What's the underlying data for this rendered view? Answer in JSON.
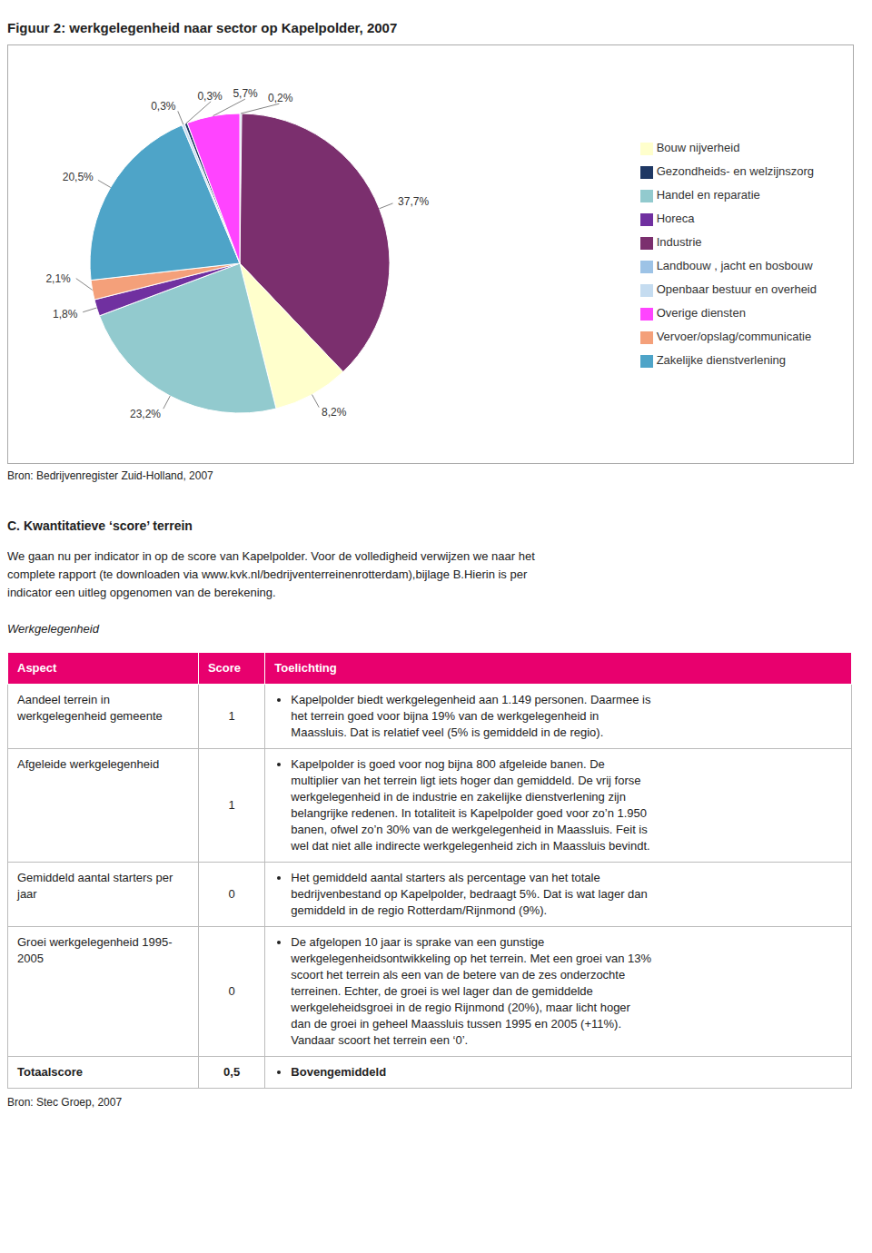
{
  "chart_data": {
    "type": "pie",
    "title": "Figuur 2: werkgelegenheid naar sector op Kapelpolder, 2007",
    "categories": [
      "Landbouw , jacht en bosbouw",
      "Industrie",
      "Bouw nijverheid",
      "Handel en reparatie",
      "Horeca",
      "Vervoer/opslag/communicatie",
      "Zakelijke dienstverlening",
      "Openbaar bestuur en overheid",
      "Gezondheids- en welzijnszorg",
      "Overige diensten"
    ],
    "values": [
      0.2,
      37.7,
      8.2,
      23.2,
      1.8,
      2.1,
      20.5,
      0.3,
      0.3,
      5.7
    ],
    "value_labels": [
      "0,2%",
      "37,7%",
      "8,2%",
      "23,2%",
      "1,8%",
      "2,1%",
      "20,5%",
      "0,3%",
      "0,3%",
      "5,7%"
    ],
    "colors": [
      "#9DC3E6",
      "#7B2F6E",
      "#FFFFCC",
      "#92CACE",
      "#7030A0",
      "#F4A07A",
      "#4EA4C8",
      "#C5DCF0",
      "#1F3864",
      "#FF44FF"
    ],
    "data_labels": true,
    "legend": "right",
    "annotations": [
      "Bron: Bedrijvenregister Zuid-Holland, 2007",
      "C. Kwantitatieve ‘score’ terrein",
      "We gaan nu per indicator in op de score van Kapelpolder. Voor de volledigheid verwijzen we naar het",
      "complete rapport (te downloaden via www.kvk.nl/bedrijventerreinenrotterdam),bijlage B.Hierin is per",
      "indicator een uitleg opgenomen van de berekening.",
      "Werkgelegenheid",
      "Bron: Stec Groep, 2007"
    ],
    "table": {
      "header_color": "#E8006E",
      "columns": [
        "Aspect",
        "Score",
        "Toelichting"
      ],
      "rows": [
        {
          "aspect": [
            "Aandeel terrein in",
            "werkgelegenheid gemeente"
          ],
          "score": "1",
          "notes": [
            "Kapelpolder biedt werkgelegenheid aan 1.149 personen. Daarmee is",
            "het terrein goed voor bijna 19% van de werkgelegenheid in",
            "Maassluis. Dat is relatief veel (5% is gemiddeld in de regio)."
          ]
        },
        {
          "aspect": [
            "Afgeleide werkgelegenheid"
          ],
          "score": "1",
          "notes": [
            "Kapelpolder is goed voor nog bijna 800 afgeleide banen. De",
            "multiplier van het terrein ligt iets hoger dan gemiddeld. De vrij forse",
            "werkgelegenheid in de industrie en zakelijke dienstverlening zijn",
            "belangrijke redenen. In totaliteit is Kapelpolder goed voor zo’n 1.950",
            "banen, ofwel zo’n 30% van de werkgelegenheid in Maassluis. Feit is",
            "wel dat niet alle indirecte werkgelegenheid zich in Maassluis bevindt."
          ]
        },
        {
          "aspect": [
            "Gemiddeld aantal starters per",
            "jaar"
          ],
          "score": "0",
          "notes": [
            "Het gemiddeld aantal starters als percentage van het totale",
            "bedrijvenbestand op Kapelpolder, bedraagt 5%. Dat is wat lager dan",
            "gemiddeld in de regio Rotterdam/Rijnmond (9%)."
          ]
        },
        {
          "aspect": [
            "Groei werkgelegenheid 1995-",
            "2005"
          ],
          "score": "0",
          "notes": [
            "De afgelopen 10 jaar is sprake van een gunstige",
            "werkgelegenheidsontwikkeling op het terrein. Met een groei van 13%",
            "scoort het terrein als een van de betere van de zes onderzochte",
            "terreinen. Echter, de groei is wel lager dan de gemiddelde",
            "werkgeleheidsgroei in de regio Rijnmond (20%), maar licht hoger",
            "dan de groei in geheel Maassluis tussen 1995 en 2005 (+11%).",
            "Vandaar scoort het terrein een ‘0’."
          ]
        }
      ],
      "footer": {
        "aspect": "Totaalscore",
        "score": "0,5",
        "notes": "Bovengemiddeld"
      }
    }
  }
}
